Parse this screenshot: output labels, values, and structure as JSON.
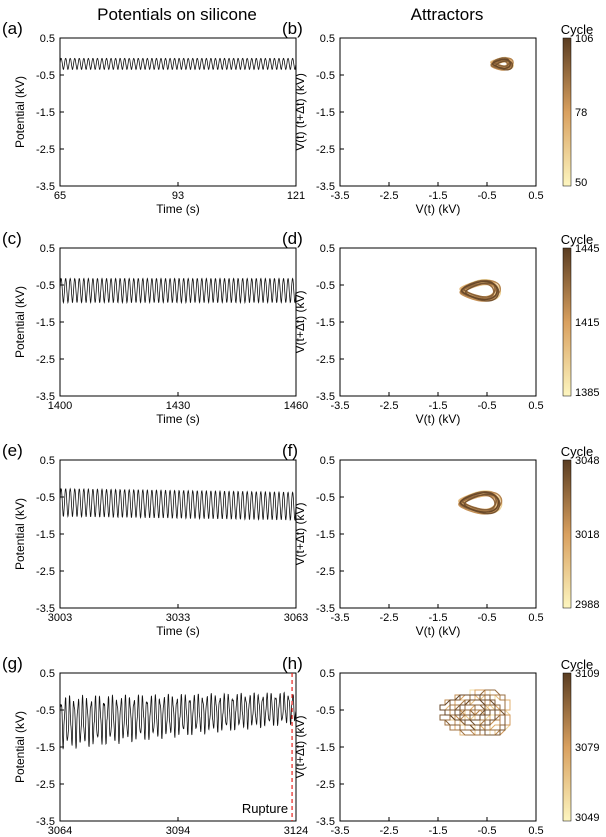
{
  "headers": {
    "left": "Potentials on silicone",
    "right": "Attractors"
  },
  "common": {
    "time_xlabel": "Time (s)",
    "potential_ylabel": "Potential (kV)",
    "attractor_xlabel": "V(t) (kV)",
    "attractor_ylabel": "V(t) (t+Δt) (kV)",
    "attractor_ylabel_alt": "V(t+Δt) (kV)",
    "colorbar_title": "Cycle",
    "rupture_label": "Rupture",
    "colors": {
      "trace": "#111111",
      "rupture": "#e8231e",
      "cmap_light": "#fdf6c0",
      "cmap_mid": "#d9a05f",
      "cmap_dark": "#5a3d22"
    }
  },
  "chart_data": [
    {
      "panel": "(a)",
      "type": "line",
      "xlabel": "Time (s)",
      "ylabel": "Potential (kV)",
      "xlim": [
        65,
        121
      ],
      "ylim": [
        -3.5,
        0.5
      ],
      "xticks": [
        65,
        93,
        121
      ],
      "yticks": [
        0.5,
        -0.5,
        -1.5,
        -2.5,
        -3.5
      ],
      "series": [
        {
          "baseline": -0.2,
          "amplitude": 0.3,
          "cycles": 52
        }
      ]
    },
    {
      "panel": "(b)",
      "type": "line",
      "xlabel": "V(t) (kV)",
      "ylabel": "V(t) (t+Δt) (kV)",
      "xlim": [
        -3.5,
        0.5
      ],
      "ylim": [
        -3.5,
        0.5
      ],
      "xticks": [
        -3.5,
        -2.5,
        -1.5,
        -0.5,
        0.5
      ],
      "yticks": [
        0.5,
        -0.5,
        -1.5,
        -2.5,
        -3.5
      ],
      "attractor": {
        "center": [
          -0.2,
          -0.2
        ],
        "size": [
          0.35,
          0.3
        ]
      },
      "colorbar": {
        "title": "Cycle",
        "min": 50,
        "mid": 78,
        "max": 106
      }
    },
    {
      "panel": "(c)",
      "type": "line",
      "xlabel": "Time (s)",
      "ylabel": "Potential (kV)",
      "xlim": [
        1400,
        1460
      ],
      "ylim": [
        -3.5,
        0.5
      ],
      "xticks": [
        1400,
        1430,
        1460
      ],
      "yticks": [
        0.5,
        -0.5,
        -1.5,
        -2.5,
        -3.5
      ],
      "series": [
        {
          "baseline": -0.65,
          "amplitude": 0.65,
          "cycles": 52
        }
      ]
    },
    {
      "panel": "(d)",
      "type": "line",
      "xlabel": "V(t) (kV)",
      "ylabel": "V(t+Δt) (kV)",
      "xlim": [
        -3.5,
        0.5
      ],
      "ylim": [
        -3.5,
        0.5
      ],
      "xticks": [
        -3.5,
        -2.5,
        -1.5,
        -0.5,
        0.5
      ],
      "yticks": [
        0.5,
        -0.5,
        -1.5,
        -2.5,
        -3.5
      ],
      "attractor": {
        "center": [
          -0.65,
          -0.65
        ],
        "size": [
          0.7,
          0.6
        ]
      },
      "colorbar": {
        "title": "Cycle",
        "min": 1385,
        "mid": 1415,
        "max": 1445
      }
    },
    {
      "panel": "(e)",
      "type": "line",
      "xlabel": "Time (s)",
      "ylabel": "Potential (kV)",
      "xlim": [
        3003,
        3063
      ],
      "ylim": [
        -3.5,
        0.5
      ],
      "xticks": [
        3003,
        3033,
        3063
      ],
      "yticks": [
        0.5,
        -0.5,
        -1.5,
        -2.5,
        -3.5
      ],
      "series": [
        {
          "baseline": -0.65,
          "amplitude": 0.75,
          "cycles": 52
        }
      ]
    },
    {
      "panel": "(f)",
      "type": "line",
      "xlabel": "V(t) (kV)",
      "ylabel": "V(t+Δt) (kV)",
      "xlim": [
        -3.5,
        0.5
      ],
      "ylim": [
        -3.5,
        0.5
      ],
      "xticks": [
        -3.5,
        -2.5,
        -1.5,
        -0.5,
        0.5
      ],
      "yticks": [
        0.5,
        -0.5,
        -1.5,
        -2.5,
        -3.5
      ],
      "attractor": {
        "center": [
          -0.65,
          -0.65
        ],
        "size": [
          0.75,
          0.65
        ]
      },
      "colorbar": {
        "title": "Cycle",
        "min": 2988,
        "mid": 3018,
        "max": 3048
      }
    },
    {
      "panel": "(g)",
      "type": "line",
      "xlabel": "Time (s)",
      "ylabel": "Potential (kV)",
      "xlim": [
        3064,
        3124
      ],
      "ylim": [
        -3.5,
        0.5
      ],
      "xticks": [
        3064,
        3094,
        3124
      ],
      "yticks": [
        0.5,
        -0.5,
        -1.5,
        -2.5,
        -3.5
      ],
      "series": [
        {
          "baseline": -0.75,
          "amplitude": 0.9,
          "cycles": 55
        }
      ],
      "annotation": {
        "x": 3123,
        "text": "Rupture"
      }
    },
    {
      "panel": "(h)",
      "type": "line",
      "xlabel": "V(t) (kV)",
      "ylabel": "V(t+Δt) (kV)",
      "xlim": [
        -3.5,
        0.5
      ],
      "ylim": [
        -3.5,
        0.5
      ],
      "xticks": [
        -3.5,
        -2.5,
        -1.5,
        -0.5,
        0.5
      ],
      "yticks": [
        0.5,
        -0.5,
        -1.5,
        -2.5,
        -3.5
      ],
      "attractor": {
        "center": [
          -0.75,
          -0.6
        ],
        "size": [
          0.9,
          0.9
        ]
      },
      "colorbar": {
        "title": "Cycle",
        "min": 3049,
        "mid": 3079,
        "max": 3109
      }
    }
  ]
}
